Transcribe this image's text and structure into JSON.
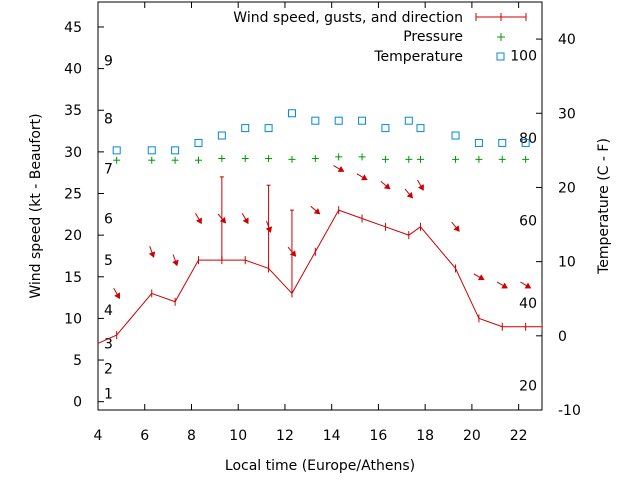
{
  "chart_data": {
    "type": "line",
    "xlabel": "Local time (Europe/Athens)",
    "ylabel_left": "Wind speed (kt - Beaufort)",
    "ylabel_right": "Temperature (C - F)",
    "xlim": [
      4,
      23
    ],
    "ylim_left": [
      -1,
      48
    ],
    "ylim_right": [
      -10,
      45
    ],
    "x_ticks": [
      4,
      6,
      8,
      10,
      12,
      14,
      16,
      18,
      20,
      22
    ],
    "y_ticks_left": [
      0,
      5,
      10,
      15,
      20,
      25,
      30,
      35,
      40,
      45
    ],
    "y_ticks_right": [
      -10,
      0,
      10,
      20,
      30,
      40
    ],
    "beaufort_labels": [
      {
        "label": "1",
        "kt": 1
      },
      {
        "label": "2",
        "kt": 4
      },
      {
        "label": "3",
        "kt": 7
      },
      {
        "label": "4",
        "kt": 11
      },
      {
        "label": "5",
        "kt": 17
      },
      {
        "label": "6",
        "kt": 22
      },
      {
        "label": "7",
        "kt": 28
      },
      {
        "label": "8",
        "kt": 34
      },
      {
        "label": "9",
        "kt": 41
      }
    ],
    "fahrenheit_labels": [
      {
        "label": "20",
        "c": -6.67
      },
      {
        "label": "40",
        "c": 4.44
      },
      {
        "label": "60",
        "c": 15.56
      },
      {
        "label": "80",
        "c": 26.67
      },
      {
        "label": "100",
        "c": 37.78
      }
    ],
    "legend": {
      "position": "top-right",
      "entries": [
        "Wind speed, gusts, and direction",
        "Pressure",
        "Temperature"
      ]
    },
    "series": [
      {
        "name": "Wind speed, gusts, and direction",
        "axis": "left",
        "x": [
          3.6,
          4.8,
          6.3,
          7.3,
          8.3,
          9.3,
          10.3,
          11.3,
          12.3,
          13.3,
          14.3,
          15.3,
          16.3,
          17.3,
          17.8,
          19.3,
          20.3,
          21.3,
          22.3,
          23
        ],
        "values": [
          6.5,
          8,
          13,
          12,
          17,
          17,
          17,
          16,
          13,
          18,
          23,
          22,
          21,
          20,
          21,
          16,
          10,
          9,
          9,
          9
        ],
        "gusts": [
          null,
          null,
          null,
          null,
          null,
          27,
          null,
          26,
          23,
          null,
          null,
          null,
          null,
          null,
          null,
          null,
          null,
          null,
          null,
          null
        ],
        "direction_deg": [
          null,
          330,
          340,
          340,
          330,
          320,
          330,
          340,
          320,
          310,
          300,
          300,
          310,
          320,
          330,
          320,
          300,
          300,
          300,
          null
        ]
      },
      {
        "name": "Pressure",
        "axis": "left",
        "x": [
          4.8,
          6.3,
          7.3,
          8.3,
          9.3,
          10.3,
          11.3,
          12.3,
          13.3,
          14.3,
          15.3,
          16.3,
          17.3,
          17.8,
          19.3,
          20.3,
          21.3,
          22.3
        ],
        "values": [
          29,
          29,
          29,
          29,
          29.2,
          29.2,
          29.2,
          29.1,
          29.2,
          29.4,
          29.4,
          29.1,
          29.1,
          29.1,
          29.1,
          29.1,
          29.1,
          29.1
        ]
      },
      {
        "name": "Temperature",
        "axis": "right",
        "x": [
          4.8,
          6.3,
          7.3,
          8.3,
          9.3,
          10.3,
          11.3,
          12.3,
          13.3,
          14.3,
          15.3,
          16.3,
          17.3,
          17.8,
          19.3,
          20.3,
          21.3,
          22.3
        ],
        "values": [
          25,
          25,
          25,
          26,
          27,
          28,
          28,
          30,
          29,
          29,
          29,
          28,
          29,
          28,
          27,
          26,
          26,
          26
        ]
      }
    ]
  }
}
